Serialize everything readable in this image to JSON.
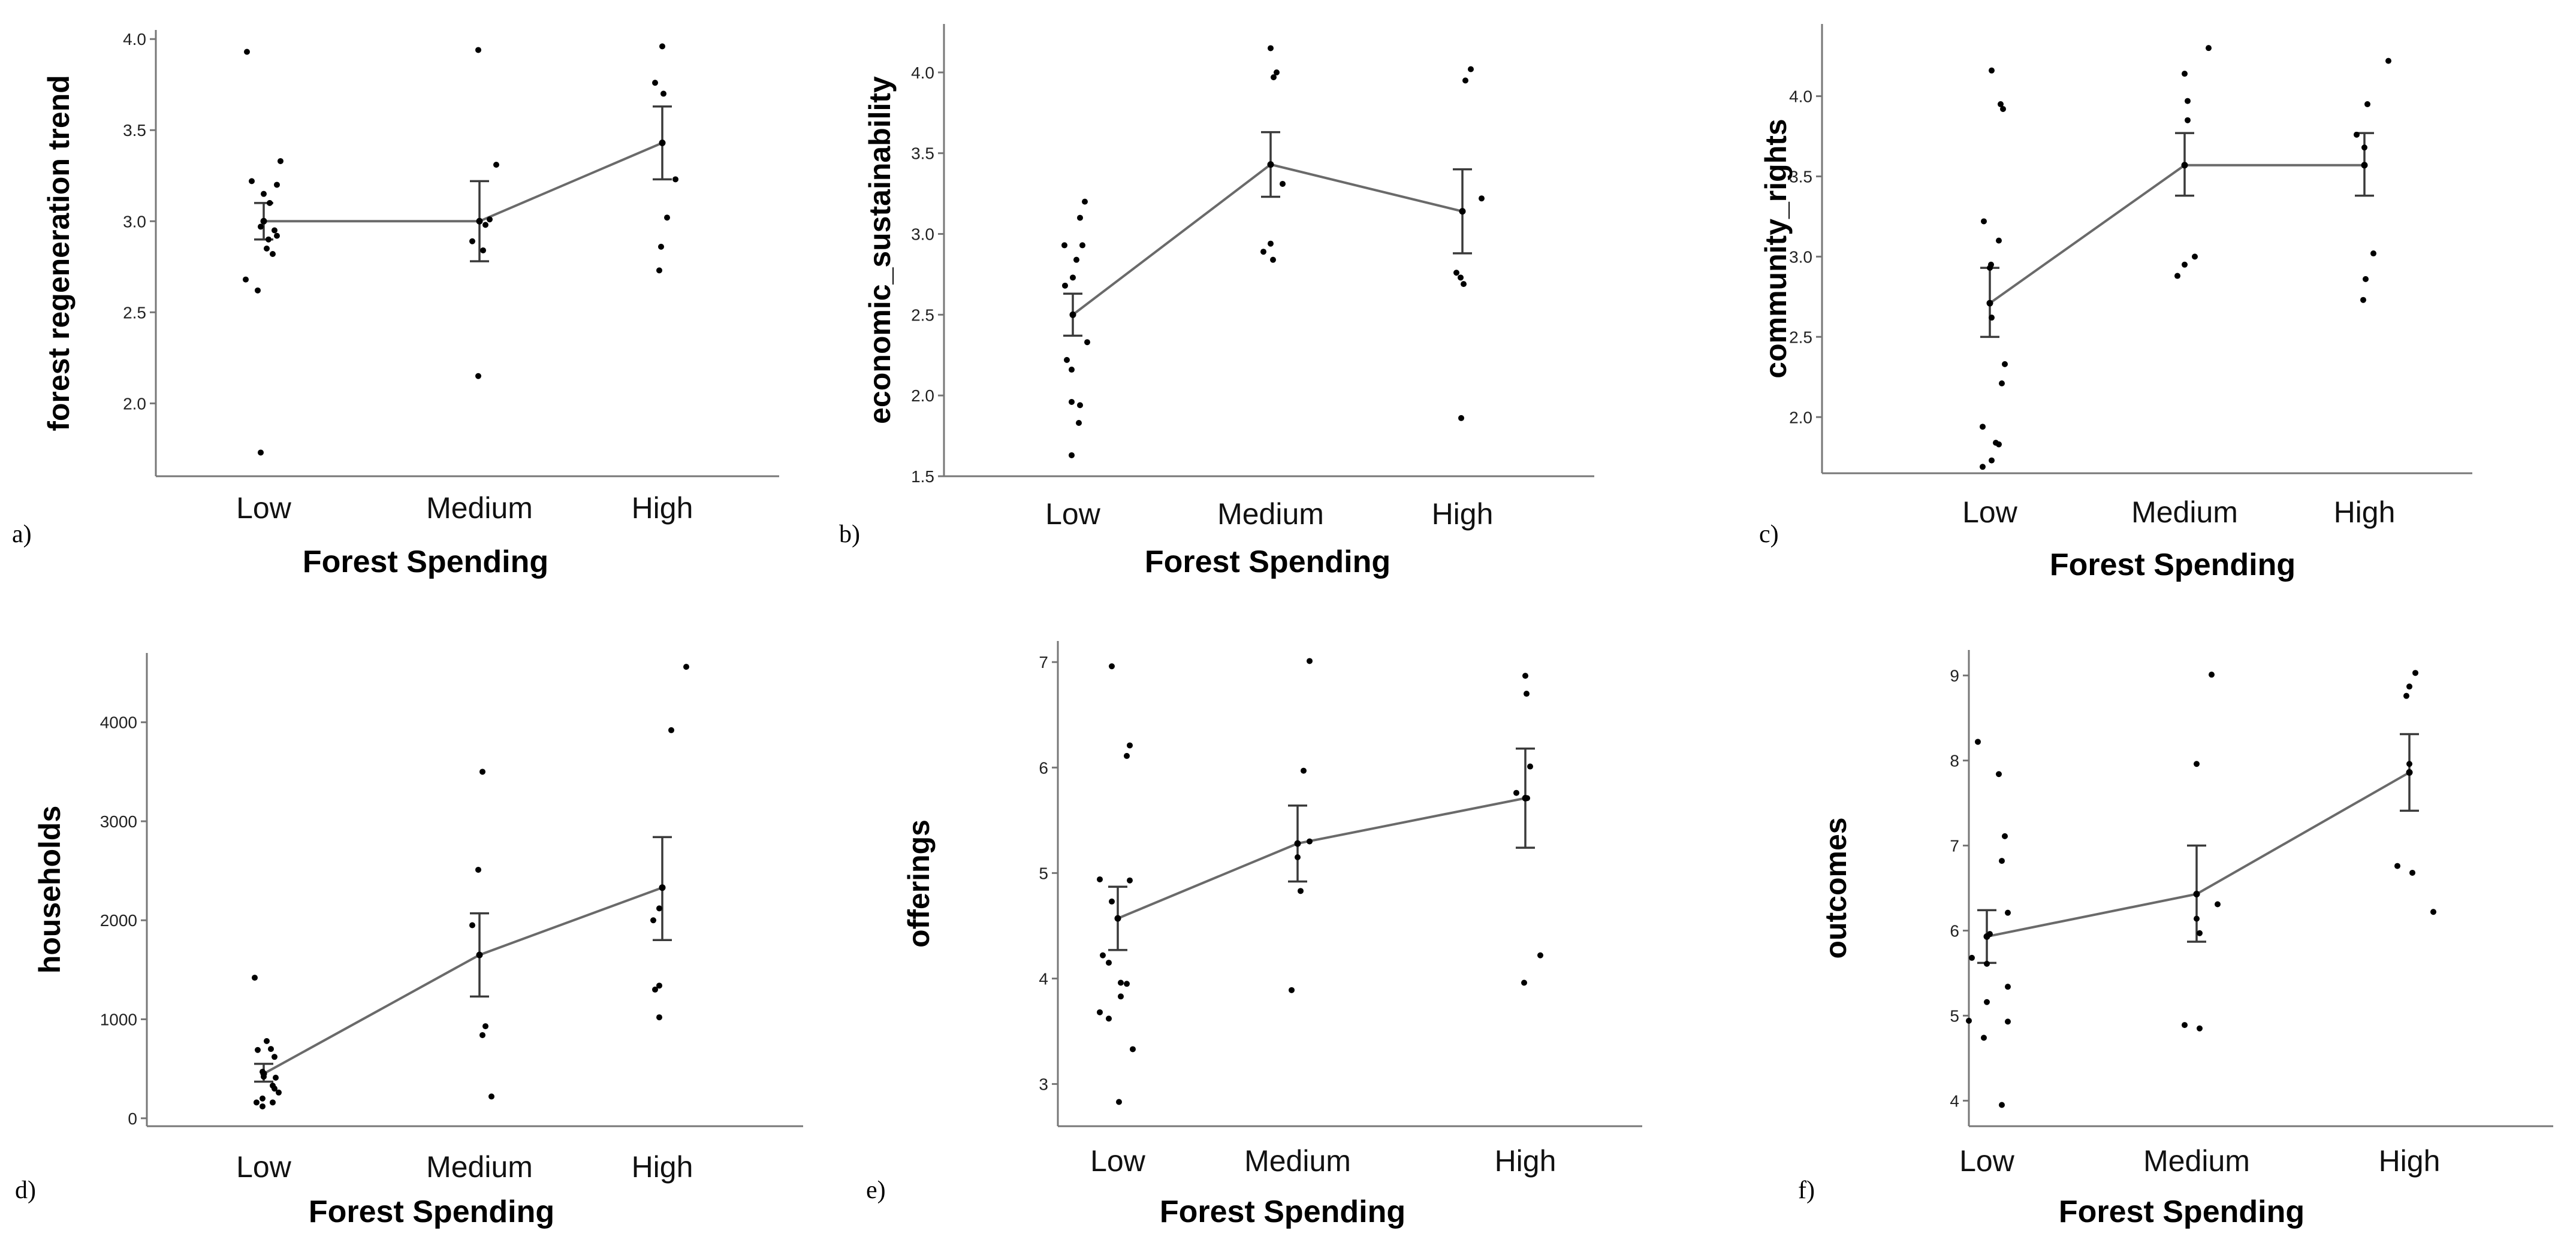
{
  "chart_data": [
    {
      "type": "scatter",
      "panel": "a)",
      "ylabel": "forest regeneration trend",
      "xlabel": "Forest Spending",
      "categories": [
        "Low",
        "Medium",
        "High"
      ],
      "ylim": [
        1.6,
        4.05
      ],
      "yticks": [
        2.0,
        2.5,
        3.0,
        3.5,
        4.0
      ],
      "ytick_labels": [
        "2.0",
        "2.5",
        "3.0",
        "3.5",
        "4.0"
      ],
      "means": [
        3.0,
        3.0,
        3.43
      ],
      "err_low": [
        2.9,
        2.78,
        3.23
      ],
      "err_high": [
        3.1,
        3.22,
        3.63
      ],
      "points": [
        {
          "cat": 0,
          "dx": -0.28,
          "y": 3.93
        },
        {
          "cat": 0,
          "dx": -0.2,
          "y": 3.22
        },
        {
          "cat": 0,
          "dx": 0.28,
          "y": 3.33
        },
        {
          "cat": 0,
          "dx": 0.22,
          "y": 3.2
        },
        {
          "cat": 0,
          "dx": 0.0,
          "y": 3.15
        },
        {
          "cat": 0,
          "dx": 0.1,
          "y": 3.1
        },
        {
          "cat": 0,
          "dx": -0.05,
          "y": 2.97
        },
        {
          "cat": 0,
          "dx": 0.18,
          "y": 2.95
        },
        {
          "cat": 0,
          "dx": 0.08,
          "y": 2.9
        },
        {
          "cat": 0,
          "dx": 0.22,
          "y": 2.92
        },
        {
          "cat": 0,
          "dx": 0.05,
          "y": 2.85
        },
        {
          "cat": 0,
          "dx": 0.15,
          "y": 2.82
        },
        {
          "cat": 0,
          "dx": -0.3,
          "y": 2.68
        },
        {
          "cat": 0,
          "dx": -0.1,
          "y": 2.62
        },
        {
          "cat": 0,
          "dx": -0.05,
          "y": 1.73
        },
        {
          "cat": 1,
          "dx": -0.02,
          "y": 3.94
        },
        {
          "cat": 1,
          "dx": 0.28,
          "y": 3.31
        },
        {
          "cat": 1,
          "dx": 0.17,
          "y": 3.01
        },
        {
          "cat": 1,
          "dx": 0.1,
          "y": 2.98
        },
        {
          "cat": 1,
          "dx": -0.12,
          "y": 2.89
        },
        {
          "cat": 1,
          "dx": 0.06,
          "y": 2.84
        },
        {
          "cat": 1,
          "dx": -0.02,
          "y": 2.15
        },
        {
          "cat": 2,
          "dx": -0.12,
          "y": 3.76
        },
        {
          "cat": 2,
          "dx": 0.0,
          "y": 3.96
        },
        {
          "cat": 2,
          "dx": 0.02,
          "y": 3.7
        },
        {
          "cat": 2,
          "dx": 0.22,
          "y": 3.23
        },
        {
          "cat": 2,
          "dx": 0.08,
          "y": 3.02
        },
        {
          "cat": 2,
          "dx": -0.02,
          "y": 2.86
        },
        {
          "cat": 2,
          "dx": -0.05,
          "y": 2.73
        }
      ]
    },
    {
      "type": "scatter",
      "panel": "b)",
      "ylabel": "economic_sustainability",
      "xlabel": "Forest Spending",
      "categories": [
        "Low",
        "Medium",
        "High"
      ],
      "ylim": [
        1.5,
        4.3
      ],
      "yticks": [
        1.5,
        2.0,
        2.5,
        3.0,
        3.5,
        4.0
      ],
      "ytick_labels": [
        "1.5",
        "2.0",
        "2.5",
        "3.0",
        "3.5",
        "4.0"
      ],
      "means": [
        2.5,
        3.43,
        3.14
      ],
      "err_low": [
        2.37,
        3.23,
        2.88
      ],
      "err_high": [
        2.63,
        3.63,
        3.4
      ],
      "points": [
        {
          "cat": 0,
          "dx": -0.14,
          "y": 2.93
        },
        {
          "cat": 0,
          "dx": 0.2,
          "y": 3.2
        },
        {
          "cat": 0,
          "dx": 0.12,
          "y": 3.1
        },
        {
          "cat": 0,
          "dx": 0.16,
          "y": 2.93
        },
        {
          "cat": 0,
          "dx": 0.06,
          "y": 2.84
        },
        {
          "cat": 0,
          "dx": -0.13,
          "y": 2.68
        },
        {
          "cat": 0,
          "dx": 0.0,
          "y": 2.73
        },
        {
          "cat": 0,
          "dx": 0.24,
          "y": 2.33
        },
        {
          "cat": 0,
          "dx": -0.1,
          "y": 2.22
        },
        {
          "cat": 0,
          "dx": -0.02,
          "y": 2.16
        },
        {
          "cat": 0,
          "dx": -0.02,
          "y": 1.96
        },
        {
          "cat": 0,
          "dx": 0.12,
          "y": 1.94
        },
        {
          "cat": 0,
          "dx": 0.1,
          "y": 1.83
        },
        {
          "cat": 0,
          "dx": -0.02,
          "y": 1.63
        },
        {
          "cat": 1,
          "dx": 0.0,
          "y": 4.15
        },
        {
          "cat": 1,
          "dx": 0.05,
          "y": 3.97
        },
        {
          "cat": 1,
          "dx": 0.1,
          "y": 4.0
        },
        {
          "cat": 1,
          "dx": 0.2,
          "y": 3.31
        },
        {
          "cat": 1,
          "dx": -0.12,
          "y": 2.89
        },
        {
          "cat": 1,
          "dx": 0.0,
          "y": 2.94
        },
        {
          "cat": 1,
          "dx": 0.04,
          "y": 2.84
        },
        {
          "cat": 2,
          "dx": 0.05,
          "y": 3.95
        },
        {
          "cat": 2,
          "dx": 0.14,
          "y": 4.02
        },
        {
          "cat": 2,
          "dx": 0.32,
          "y": 3.22
        },
        {
          "cat": 2,
          "dx": -0.1,
          "y": 2.76
        },
        {
          "cat": 2,
          "dx": -0.03,
          "y": 2.73
        },
        {
          "cat": 2,
          "dx": 0.02,
          "y": 2.69
        },
        {
          "cat": 2,
          "dx": -0.02,
          "y": 1.86
        }
      ]
    },
    {
      "type": "scatter",
      "panel": "c)",
      "ylabel": "community_rights",
      "xlabel": "Forest Spending",
      "categories": [
        "Low",
        "Medium",
        "High"
      ],
      "ylim": [
        1.65,
        4.45
      ],
      "yticks": [
        2.0,
        2.5,
        3.0,
        3.5,
        4.0
      ],
      "ytick_labels": [
        "2.0",
        "2.5",
        "3.0",
        "3.5",
        "4.0"
      ],
      "means": [
        2.71,
        3.57,
        3.57
      ],
      "err_low": [
        2.5,
        3.38,
        3.38
      ],
      "err_high": [
        2.93,
        3.77,
        3.77
      ],
      "points": [
        {
          "cat": 0,
          "dx": 0.03,
          "y": 4.16
        },
        {
          "cat": 0,
          "dx": 0.18,
          "y": 3.95
        },
        {
          "cat": 0,
          "dx": 0.22,
          "y": 3.92
        },
        {
          "cat": 0,
          "dx": -0.1,
          "y": 3.22
        },
        {
          "cat": 0,
          "dx": 0.15,
          "y": 3.1
        },
        {
          "cat": 0,
          "dx": 0.02,
          "y": 2.95
        },
        {
          "cat": 0,
          "dx": 0.0,
          "y": 2.93
        },
        {
          "cat": 0,
          "dx": 0.03,
          "y": 2.62
        },
        {
          "cat": 0,
          "dx": 0.25,
          "y": 2.33
        },
        {
          "cat": 0,
          "dx": 0.2,
          "y": 2.21
        },
        {
          "cat": 0,
          "dx": -0.12,
          "y": 1.94
        },
        {
          "cat": 0,
          "dx": 0.1,
          "y": 1.84
        },
        {
          "cat": 0,
          "dx": 0.15,
          "y": 1.83
        },
        {
          "cat": 0,
          "dx": 0.03,
          "y": 1.73
        },
        {
          "cat": 0,
          "dx": -0.12,
          "y": 1.69
        },
        {
          "cat": 1,
          "dx": 0.0,
          "y": 4.14
        },
        {
          "cat": 1,
          "dx": 0.05,
          "y": 3.97
        },
        {
          "cat": 1,
          "dx": 0.05,
          "y": 3.85
        },
        {
          "cat": 1,
          "dx": 0.4,
          "y": 4.3
        },
        {
          "cat": 1,
          "dx": 0.17,
          "y": 3.0
        },
        {
          "cat": 1,
          "dx": 0.0,
          "y": 2.95
        },
        {
          "cat": 1,
          "dx": -0.12,
          "y": 2.88
        },
        {
          "cat": 2,
          "dx": 0.05,
          "y": 3.95
        },
        {
          "cat": 2,
          "dx": -0.13,
          "y": 3.76
        },
        {
          "cat": 2,
          "dx": 0.0,
          "y": 3.68
        },
        {
          "cat": 2,
          "dx": 0.4,
          "y": 4.22
        },
        {
          "cat": 2,
          "dx": 0.15,
          "y": 3.02
        },
        {
          "cat": 2,
          "dx": 0.02,
          "y": 2.86
        },
        {
          "cat": 2,
          "dx": -0.02,
          "y": 2.73
        }
      ]
    },
    {
      "type": "scatter",
      "panel": "d)",
      "ylabel": "households",
      "xlabel": "Forest Spending",
      "categories": [
        "Low",
        "Medium",
        "High"
      ],
      "ylim": [
        -80,
        4700
      ],
      "yticks": [
        0,
        1000,
        2000,
        3000,
        4000
      ],
      "ytick_labels": [
        "0",
        "1000",
        "2000",
        "3000",
        "4000"
      ],
      "means": [
        450,
        1650,
        2330
      ],
      "err_low": [
        370,
        1230,
        1800
      ],
      "err_high": [
        550,
        2070,
        2840
      ],
      "points": [
        {
          "cat": 0,
          "dx": -0.15,
          "y": 1420
        },
        {
          "cat": 0,
          "dx": -0.1,
          "y": 690
        },
        {
          "cat": 0,
          "dx": 0.05,
          "y": 780
        },
        {
          "cat": 0,
          "dx": 0.12,
          "y": 700
        },
        {
          "cat": 0,
          "dx": 0.18,
          "y": 620
        },
        {
          "cat": 0,
          "dx": -0.02,
          "y": 470
        },
        {
          "cat": 0,
          "dx": 0.0,
          "y": 420
        },
        {
          "cat": 0,
          "dx": 0.2,
          "y": 410
        },
        {
          "cat": 0,
          "dx": 0.15,
          "y": 330
        },
        {
          "cat": 0,
          "dx": 0.18,
          "y": 300
        },
        {
          "cat": 0,
          "dx": 0.25,
          "y": 260
        },
        {
          "cat": 0,
          "dx": -0.02,
          "y": 200
        },
        {
          "cat": 0,
          "dx": -0.12,
          "y": 160
        },
        {
          "cat": 0,
          "dx": 0.15,
          "y": 160
        },
        {
          "cat": 0,
          "dx": -0.02,
          "y": 120
        },
        {
          "cat": 1,
          "dx": 0.05,
          "y": 3500
        },
        {
          "cat": 1,
          "dx": -0.02,
          "y": 2510
        },
        {
          "cat": 1,
          "dx": -0.12,
          "y": 1950
        },
        {
          "cat": 1,
          "dx": 0.1,
          "y": 930
        },
        {
          "cat": 1,
          "dx": 0.05,
          "y": 840
        },
        {
          "cat": 1,
          "dx": 0.2,
          "y": 220
        },
        {
          "cat": 2,
          "dx": 0.4,
          "y": 4560
        },
        {
          "cat": 2,
          "dx": 0.15,
          "y": 3920
        },
        {
          "cat": 2,
          "dx": -0.15,
          "y": 2000
        },
        {
          "cat": 2,
          "dx": -0.05,
          "y": 2120
        },
        {
          "cat": 2,
          "dx": -0.05,
          "y": 1340
        },
        {
          "cat": 2,
          "dx": -0.12,
          "y": 1300
        },
        {
          "cat": 2,
          "dx": -0.05,
          "y": 1020
        }
      ]
    },
    {
      "type": "scatter",
      "panel": "e)",
      "ylabel": "offerings",
      "xlabel": "Forest Spending",
      "categories": [
        "Low",
        "Medium",
        "High"
      ],
      "ylim": [
        2.6,
        7.2
      ],
      "yticks": [
        3,
        4,
        5,
        6,
        7
      ],
      "ytick_labels": [
        "3",
        "4",
        "5",
        "6",
        "7"
      ],
      "means": [
        4.57,
        5.28,
        5.71
      ],
      "err_low": [
        4.27,
        4.92,
        5.24
      ],
      "err_high": [
        4.87,
        5.64,
        6.18
      ],
      "points": [
        {
          "cat": 0,
          "dx": -0.1,
          "y": 6.96
        },
        {
          "cat": 0,
          "dx": 0.2,
          "y": 6.21
        },
        {
          "cat": 0,
          "dx": 0.15,
          "y": 6.11
        },
        {
          "cat": 0,
          "dx": -0.3,
          "y": 4.94
        },
        {
          "cat": 0,
          "dx": 0.2,
          "y": 4.93
        },
        {
          "cat": 0,
          "dx": -0.1,
          "y": 4.73
        },
        {
          "cat": 0,
          "dx": -0.25,
          "y": 4.22
        },
        {
          "cat": 0,
          "dx": -0.15,
          "y": 4.15
        },
        {
          "cat": 0,
          "dx": 0.05,
          "y": 3.96
        },
        {
          "cat": 0,
          "dx": 0.15,
          "y": 3.95
        },
        {
          "cat": 0,
          "dx": -0.3,
          "y": 3.68
        },
        {
          "cat": 0,
          "dx": -0.15,
          "y": 3.62
        },
        {
          "cat": 0,
          "dx": 0.05,
          "y": 3.83
        },
        {
          "cat": 0,
          "dx": 0.25,
          "y": 3.33
        },
        {
          "cat": 0,
          "dx": 0.02,
          "y": 2.83
        },
        {
          "cat": 1,
          "dx": 0.2,
          "y": 7.01
        },
        {
          "cat": 1,
          "dx": 0.1,
          "y": 5.97
        },
        {
          "cat": 1,
          "dx": 0.2,
          "y": 5.3
        },
        {
          "cat": 1,
          "dx": 0.0,
          "y": 5.15
        },
        {
          "cat": 1,
          "dx": 0.05,
          "y": 4.83
        },
        {
          "cat": 1,
          "dx": -0.1,
          "y": 3.89
        },
        {
          "cat": 2,
          "dx": 0.0,
          "y": 6.87
        },
        {
          "cat": 2,
          "dx": 0.02,
          "y": 6.7
        },
        {
          "cat": 2,
          "dx": 0.08,
          "y": 6.01
        },
        {
          "cat": 2,
          "dx": -0.15,
          "y": 5.76
        },
        {
          "cat": 2,
          "dx": 0.03,
          "y": 5.71
        },
        {
          "cat": 2,
          "dx": 0.25,
          "y": 4.22
        },
        {
          "cat": 2,
          "dx": -0.02,
          "y": 3.96
        }
      ]
    },
    {
      "type": "scatter",
      "panel": "f)",
      "ylabel": "outcomes",
      "xlabel": "Forest Spending",
      "categories": [
        "Low",
        "Medium",
        "High"
      ],
      "ylim": [
        3.7,
        9.3
      ],
      "yticks": [
        4,
        5,
        6,
        7,
        8,
        9
      ],
      "ytick_labels": [
        "4",
        "5",
        "6",
        "7",
        "8",
        "9"
      ],
      "means": [
        5.93,
        6.43,
        7.86
      ],
      "err_low": [
        5.62,
        5.87,
        7.41
      ],
      "err_high": [
        6.24,
        7.0,
        8.31
      ],
      "points": [
        {
          "cat": 0,
          "dx": -0.15,
          "y": 8.22
        },
        {
          "cat": 0,
          "dx": 0.2,
          "y": 7.84
        },
        {
          "cat": 0,
          "dx": 0.3,
          "y": 7.11
        },
        {
          "cat": 0,
          "dx": 0.25,
          "y": 6.82
        },
        {
          "cat": 0,
          "dx": 0.35,
          "y": 6.21
        },
        {
          "cat": 0,
          "dx": 0.05,
          "y": 5.96
        },
        {
          "cat": 0,
          "dx": -0.25,
          "y": 5.68
        },
        {
          "cat": 0,
          "dx": 0.0,
          "y": 5.61
        },
        {
          "cat": 0,
          "dx": 0.35,
          "y": 5.34
        },
        {
          "cat": 0,
          "dx": 0.0,
          "y": 5.16
        },
        {
          "cat": 0,
          "dx": -0.3,
          "y": 4.94
        },
        {
          "cat": 0,
          "dx": 0.35,
          "y": 4.93
        },
        {
          "cat": 0,
          "dx": -0.05,
          "y": 4.74
        },
        {
          "cat": 0,
          "dx": 0.25,
          "y": 3.95
        },
        {
          "cat": 1,
          "dx": 0.25,
          "y": 9.01
        },
        {
          "cat": 1,
          "dx": 0.0,
          "y": 7.96
        },
        {
          "cat": 1,
          "dx": 0.35,
          "y": 6.31
        },
        {
          "cat": 1,
          "dx": 0.0,
          "y": 6.14
        },
        {
          "cat": 1,
          "dx": 0.05,
          "y": 5.97
        },
        {
          "cat": 1,
          "dx": -0.2,
          "y": 4.89
        },
        {
          "cat": 1,
          "dx": 0.05,
          "y": 4.85
        },
        {
          "cat": 2,
          "dx": 0.1,
          "y": 9.03
        },
        {
          "cat": 2,
          "dx": 0.0,
          "y": 8.87
        },
        {
          "cat": 2,
          "dx": -0.05,
          "y": 8.76
        },
        {
          "cat": 2,
          "dx": 0.0,
          "y": 7.96
        },
        {
          "cat": 2,
          "dx": -0.2,
          "y": 6.76
        },
        {
          "cat": 2,
          "dx": 0.05,
          "y": 6.68
        },
        {
          "cat": 2,
          "dx": 0.4,
          "y": 6.22
        }
      ]
    }
  ]
}
